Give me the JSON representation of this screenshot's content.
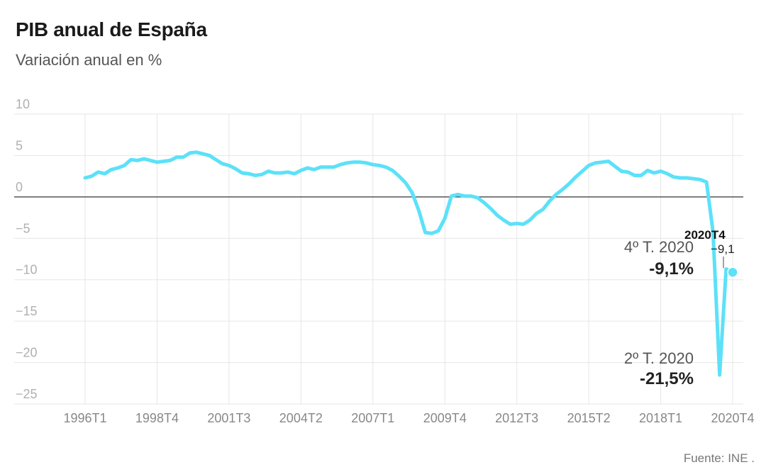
{
  "header": {
    "title": "PIB anual de España",
    "subtitle": "Variación anual en %"
  },
  "footer": {
    "source": "Fuente: INE ."
  },
  "annotations": {
    "q4_label": "4º T. 2020",
    "q4_value": "-9,1%",
    "q2_label": "2º T. 2020",
    "q2_value": "-21,5%",
    "marker_period": "2020T4",
    "marker_value": "−9,1"
  },
  "colors": {
    "line": "#5ce1f9",
    "grid": "#e6e6e6",
    "zero_line": "#333333"
  },
  "chart_data": {
    "type": "line",
    "title": "PIB anual de España",
    "subtitle": "Variación anual en %",
    "xlabel": "",
    "ylabel": "",
    "ylim": [
      -25,
      10
    ],
    "grid": true,
    "y_ticks": [
      10,
      5,
      0,
      -5,
      -10,
      -15,
      -20,
      -25
    ],
    "y_tick_labels": [
      "10",
      "5",
      "0",
      "−5",
      "−10",
      "−15",
      "−20",
      "−25"
    ],
    "x_tick_labels": [
      "1996T1",
      "1998T4",
      "2001T3",
      "2004T2",
      "2007T1",
      "2009T4",
      "2012T3",
      "2015T2",
      "2018T1",
      "2020T4"
    ],
    "series": [
      {
        "x": [
          "1996T1",
          "1996T2",
          "1996T3",
          "1996T4",
          "1997T1",
          "1997T2",
          "1997T3",
          "1997T4",
          "1998T1",
          "1998T2",
          "1998T3",
          "1998T4",
          "1999T1",
          "1999T2",
          "1999T3",
          "1999T4",
          "2000T1",
          "2000T2",
          "2000T3",
          "2000T4",
          "2001T1",
          "2001T2",
          "2001T3",
          "2001T4",
          "2002T1",
          "2002T2",
          "2002T3",
          "2002T4",
          "2003T1",
          "2003T2",
          "2003T3",
          "2003T4",
          "2004T1",
          "2004T2",
          "2004T3",
          "2004T4",
          "2005T1",
          "2005T2",
          "2005T3",
          "2005T4",
          "2006T1",
          "2006T2",
          "2006T3",
          "2006T4",
          "2007T1",
          "2007T2",
          "2007T3",
          "2007T4",
          "2008T1",
          "2008T2",
          "2008T3",
          "2008T4",
          "2009T1",
          "2009T2",
          "2009T3",
          "2009T4",
          "2010T1",
          "2010T2",
          "2010T3",
          "2010T4",
          "2011T1",
          "2011T2",
          "2011T3",
          "2011T4",
          "2012T1",
          "2012T2",
          "2012T3",
          "2012T4",
          "2013T1",
          "2013T2",
          "2013T3",
          "2013T4",
          "2014T1",
          "2014T2",
          "2014T3",
          "2014T4",
          "2015T1",
          "2015T2",
          "2015T3",
          "2015T4",
          "2016T1",
          "2016T2",
          "2016T3",
          "2016T4",
          "2017T1",
          "2017T2",
          "2017T3",
          "2017T4",
          "2018T1",
          "2018T2",
          "2018T3",
          "2018T4",
          "2019T1",
          "2019T2",
          "2019T3",
          "2019T4",
          "2020T1",
          "2020T2",
          "2020T3",
          "2020T4"
        ],
        "values": [
          2.3,
          2.5,
          3.0,
          2.8,
          3.3,
          3.5,
          3.8,
          4.5,
          4.4,
          4.6,
          4.4,
          4.2,
          4.3,
          4.4,
          4.8,
          4.8,
          5.3,
          5.4,
          5.2,
          5.0,
          4.5,
          4.0,
          3.8,
          3.4,
          2.9,
          2.8,
          2.6,
          2.7,
          3.1,
          2.9,
          2.9,
          3.0,
          2.8,
          3.2,
          3.5,
          3.3,
          3.6,
          3.6,
          3.6,
          3.9,
          4.1,
          4.2,
          4.2,
          4.1,
          3.9,
          3.8,
          3.6,
          3.2,
          2.5,
          1.7,
          0.5,
          -1.6,
          -4.3,
          -4.4,
          -4.1,
          -2.6,
          0.1,
          0.3,
          0.1,
          0.1,
          -0.1,
          -0.7,
          -1.4,
          -2.2,
          -2.8,
          -3.3,
          -3.2,
          -3.3,
          -2.8,
          -2.0,
          -1.5,
          -0.5,
          0.3,
          0.9,
          1.6,
          2.4,
          3.1,
          3.8,
          4.1,
          4.2,
          4.3,
          3.7,
          3.1,
          3.0,
          2.6,
          2.6,
          3.2,
          2.9,
          3.1,
          2.8,
          2.4,
          2.3,
          2.3,
          2.2,
          2.1,
          1.8,
          -4.2,
          -21.5,
          -8.7,
          -9.1
        ]
      }
    ]
  }
}
